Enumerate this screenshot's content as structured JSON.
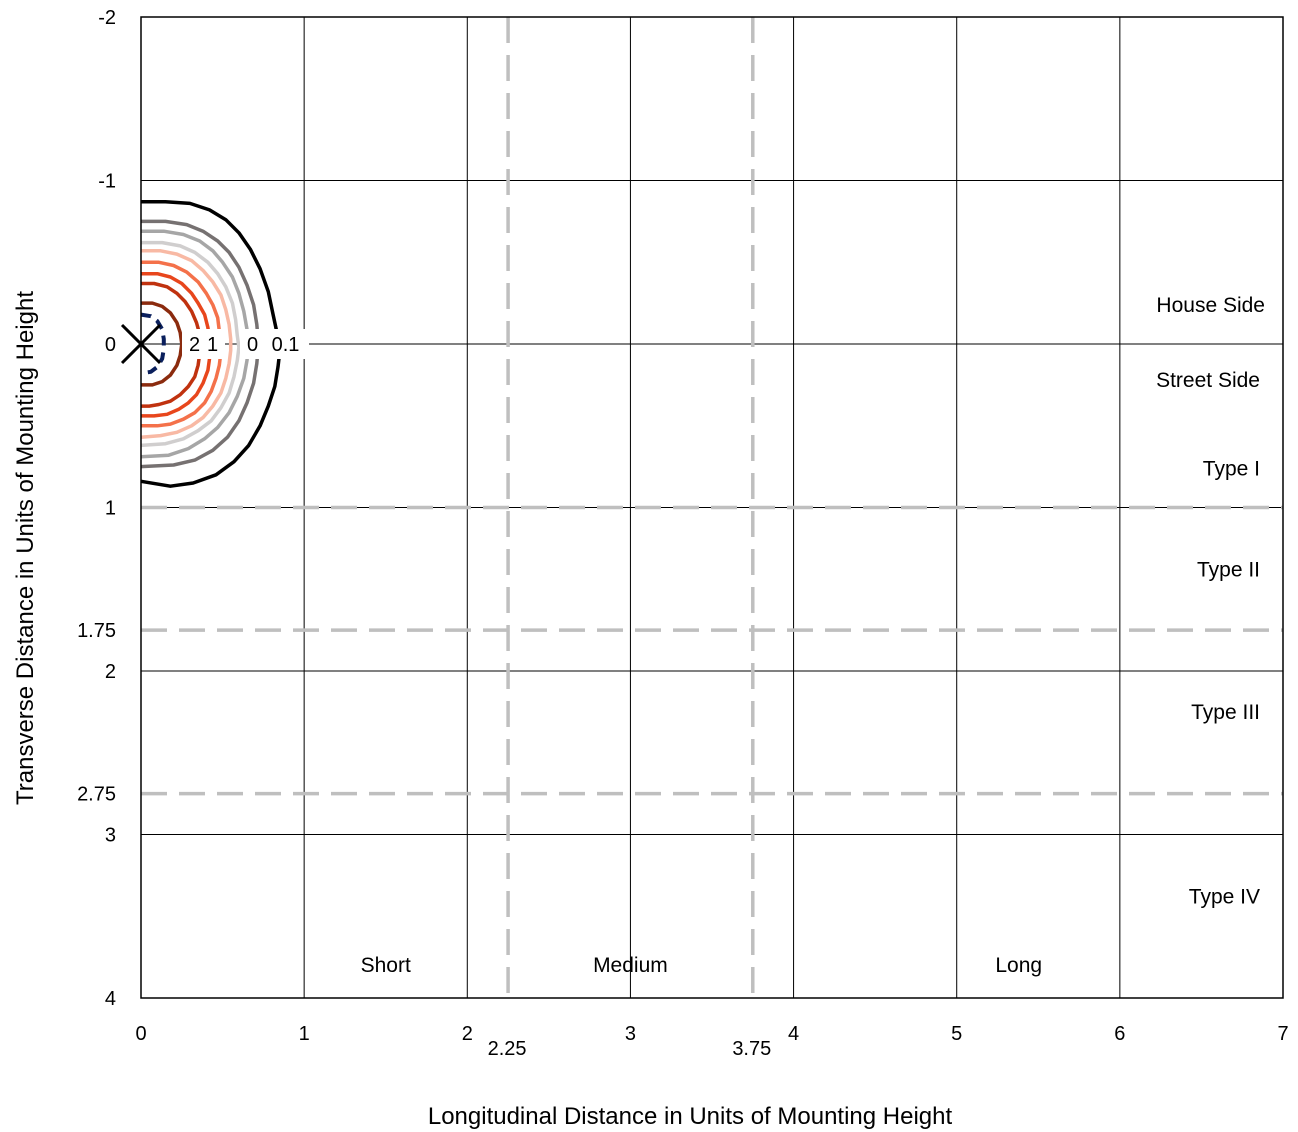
{
  "chart_data": {
    "type": "line",
    "title": "",
    "xlabel": "Longitudinal Distance in Units of Mounting Height",
    "ylabel": "Transverse Distance in Units of Mounting Height",
    "xlim": [
      0,
      7
    ],
    "ylim": [
      -2,
      4
    ],
    "y_axis_inverted": true,
    "x_ticks": [
      0,
      1,
      2,
      3,
      4,
      5,
      6,
      7
    ],
    "y_ticks": [
      -2,
      -1,
      0,
      1,
      2,
      3,
      4
    ],
    "extra_x_tick_labels": [
      "2.25",
      "3.75"
    ],
    "extra_y_tick_labels": [
      "1.75",
      "2.75"
    ],
    "grid": true,
    "luminaire_position": {
      "x": 0,
      "y": 0,
      "marker": "x"
    },
    "classification_lines": {
      "longitudinal": [
        2.25,
        3.75
      ],
      "transverse": [
        1,
        1.75,
        2.75
      ],
      "color": "#bfbfbf",
      "style": "dashed"
    },
    "region_labels": {
      "transverse": [
        "House Side",
        "Street Side",
        "Type I",
        "Type II",
        "Type III",
        "Type IV"
      ],
      "longitudinal": [
        "Short",
        "Medium",
        "Long"
      ]
    },
    "contour_labels": [
      "2",
      "1",
      "0",
      "0.1"
    ],
    "series": [
      {
        "color": "#000000",
        "width": 3.5,
        "dash": false,
        "points": [
          [
            0,
            -0.87
          ],
          [
            0.15,
            -0.87
          ],
          [
            0.3,
            -0.86
          ],
          [
            0.42,
            -0.82
          ],
          [
            0.52,
            -0.76
          ],
          [
            0.6,
            -0.68
          ],
          [
            0.67,
            -0.58
          ],
          [
            0.73,
            -0.46
          ],
          [
            0.78,
            -0.32
          ],
          [
            0.81,
            -0.18
          ],
          [
            0.84,
            -0.04
          ],
          [
            0.85,
            0.05
          ],
          [
            0.84,
            0.14
          ],
          [
            0.82,
            0.26
          ],
          [
            0.78,
            0.38
          ],
          [
            0.73,
            0.5
          ],
          [
            0.66,
            0.62
          ],
          [
            0.57,
            0.72
          ],
          [
            0.46,
            0.8
          ],
          [
            0.32,
            0.85
          ],
          [
            0.18,
            0.87
          ],
          [
            0,
            0.84
          ]
        ]
      },
      {
        "color": "#767171",
        "width": 3.5,
        "dash": false,
        "points": [
          [
            0,
            -0.75
          ],
          [
            0.15,
            -0.75
          ],
          [
            0.28,
            -0.73
          ],
          [
            0.38,
            -0.69
          ],
          [
            0.47,
            -0.63
          ],
          [
            0.54,
            -0.56
          ],
          [
            0.6,
            -0.47
          ],
          [
            0.65,
            -0.36
          ],
          [
            0.69,
            -0.24
          ],
          [
            0.71,
            -0.12
          ],
          [
            0.72,
            0.0
          ],
          [
            0.71,
            0.12
          ],
          [
            0.69,
            0.24
          ],
          [
            0.65,
            0.36
          ],
          [
            0.6,
            0.47
          ],
          [
            0.53,
            0.57
          ],
          [
            0.44,
            0.65
          ],
          [
            0.33,
            0.71
          ],
          [
            0.2,
            0.74
          ],
          [
            0,
            0.75
          ]
        ]
      },
      {
        "color": "#a6a6a6",
        "width": 3.5,
        "dash": false,
        "points": [
          [
            0,
            -0.69
          ],
          [
            0.14,
            -0.69
          ],
          [
            0.26,
            -0.67
          ],
          [
            0.36,
            -0.63
          ],
          [
            0.44,
            -0.57
          ],
          [
            0.5,
            -0.5
          ],
          [
            0.56,
            -0.41
          ],
          [
            0.6,
            -0.31
          ],
          [
            0.63,
            -0.2
          ],
          [
            0.65,
            -0.09
          ],
          [
            0.66,
            0.0
          ],
          [
            0.65,
            0.1
          ],
          [
            0.63,
            0.21
          ],
          [
            0.59,
            0.32
          ],
          [
            0.54,
            0.42
          ],
          [
            0.47,
            0.51
          ],
          [
            0.39,
            0.58
          ],
          [
            0.29,
            0.64
          ],
          [
            0.17,
            0.68
          ],
          [
            0,
            0.69
          ]
        ]
      },
      {
        "color": "#d0cece",
        "width": 3.5,
        "dash": false,
        "points": [
          [
            0,
            -0.62
          ],
          [
            0.13,
            -0.62
          ],
          [
            0.24,
            -0.6
          ],
          [
            0.33,
            -0.56
          ],
          [
            0.41,
            -0.5
          ],
          [
            0.47,
            -0.43
          ],
          [
            0.52,
            -0.35
          ],
          [
            0.56,
            -0.25
          ],
          [
            0.58,
            -0.15
          ],
          [
            0.59,
            -0.05
          ],
          [
            0.6,
            0.02
          ],
          [
            0.59,
            0.1
          ],
          [
            0.57,
            0.2
          ],
          [
            0.54,
            0.3
          ],
          [
            0.49,
            0.39
          ],
          [
            0.43,
            0.47
          ],
          [
            0.35,
            0.53
          ],
          [
            0.26,
            0.58
          ],
          [
            0.15,
            0.61
          ],
          [
            0,
            0.62
          ]
        ]
      },
      {
        "color": "#f8b9a4",
        "width": 3.5,
        "dash": false,
        "points": [
          [
            0,
            -0.57
          ],
          [
            0.12,
            -0.57
          ],
          [
            0.22,
            -0.55
          ],
          [
            0.31,
            -0.51
          ],
          [
            0.38,
            -0.45
          ],
          [
            0.44,
            -0.38
          ],
          [
            0.49,
            -0.3
          ],
          [
            0.52,
            -0.21
          ],
          [
            0.54,
            -0.12
          ],
          [
            0.55,
            -0.03
          ],
          [
            0.55,
            0.04
          ],
          [
            0.54,
            0.12
          ],
          [
            0.52,
            0.21
          ],
          [
            0.49,
            0.3
          ],
          [
            0.44,
            0.38
          ],
          [
            0.38,
            0.45
          ],
          [
            0.31,
            0.5
          ],
          [
            0.22,
            0.54
          ],
          [
            0.12,
            0.56
          ],
          [
            0,
            0.57
          ]
        ]
      },
      {
        "color": "#f4714a",
        "width": 3.5,
        "dash": false,
        "points": [
          [
            0,
            -0.5
          ],
          [
            0.11,
            -0.5
          ],
          [
            0.2,
            -0.48
          ],
          [
            0.28,
            -0.44
          ],
          [
            0.35,
            -0.38
          ],
          [
            0.4,
            -0.31
          ],
          [
            0.44,
            -0.24
          ],
          [
            0.47,
            -0.16
          ],
          [
            0.48,
            -0.08
          ],
          [
            0.49,
            0.0
          ],
          [
            0.49,
            0.05
          ],
          [
            0.48,
            0.13
          ],
          [
            0.46,
            0.21
          ],
          [
            0.43,
            0.29
          ],
          [
            0.39,
            0.36
          ],
          [
            0.33,
            0.42
          ],
          [
            0.26,
            0.46
          ],
          [
            0.18,
            0.49
          ],
          [
            0.1,
            0.5
          ],
          [
            0,
            0.5
          ]
        ]
      },
      {
        "color": "#e8461c",
        "width": 3.5,
        "dash": false,
        "points": [
          [
            0,
            -0.43
          ],
          [
            0.1,
            -0.43
          ],
          [
            0.18,
            -0.41
          ],
          [
            0.25,
            -0.37
          ],
          [
            0.31,
            -0.31
          ],
          [
            0.35,
            -0.25
          ],
          [
            0.39,
            -0.18
          ],
          [
            0.41,
            -0.1
          ],
          [
            0.42,
            -0.03
          ],
          [
            0.43,
            0.02
          ],
          [
            0.42,
            0.09
          ],
          [
            0.41,
            0.16
          ],
          [
            0.38,
            0.24
          ],
          [
            0.34,
            0.31
          ],
          [
            0.29,
            0.36
          ],
          [
            0.23,
            0.4
          ],
          [
            0.16,
            0.43
          ],
          [
            0.08,
            0.44
          ],
          [
            0,
            0.44
          ]
        ]
      },
      {
        "color": "#c0320f",
        "width": 3.5,
        "dash": false,
        "points": [
          [
            0,
            -0.37
          ],
          [
            0.08,
            -0.37
          ],
          [
            0.16,
            -0.35
          ],
          [
            0.22,
            -0.31
          ],
          [
            0.27,
            -0.26
          ],
          [
            0.31,
            -0.2
          ],
          [
            0.34,
            -0.13
          ],
          [
            0.36,
            -0.06
          ],
          [
            0.37,
            0.0
          ],
          [
            0.36,
            0.06
          ],
          [
            0.35,
            0.13
          ],
          [
            0.33,
            0.2
          ],
          [
            0.29,
            0.26
          ],
          [
            0.24,
            0.31
          ],
          [
            0.18,
            0.35
          ],
          [
            0.11,
            0.37
          ],
          [
            0.05,
            0.38
          ],
          [
            0,
            0.38
          ]
        ]
      },
      {
        "color": "#8b2b0e",
        "width": 3.5,
        "dash": false,
        "points": [
          [
            0,
            -0.25
          ],
          [
            0.07,
            -0.25
          ],
          [
            0.13,
            -0.23
          ],
          [
            0.18,
            -0.19
          ],
          [
            0.22,
            -0.13
          ],
          [
            0.24,
            -0.07
          ],
          [
            0.25,
            0.0
          ],
          [
            0.24,
            0.07
          ],
          [
            0.22,
            0.13
          ],
          [
            0.18,
            0.19
          ],
          [
            0.13,
            0.23
          ],
          [
            0.07,
            0.25
          ],
          [
            0,
            0.25
          ]
        ]
      },
      {
        "color": "#0a1f5c",
        "width": 4,
        "dash": true,
        "points": [
          [
            0,
            -0.18
          ],
          [
            0.06,
            -0.17
          ],
          [
            0.1,
            -0.14
          ],
          [
            0.13,
            -0.09
          ],
          [
            0.14,
            -0.03
          ],
          [
            0.14,
            0.03
          ],
          [
            0.13,
            0.09
          ],
          [
            0.1,
            0.14
          ],
          [
            0.06,
            0.17
          ],
          [
            0,
            0.18
          ]
        ]
      }
    ]
  }
}
